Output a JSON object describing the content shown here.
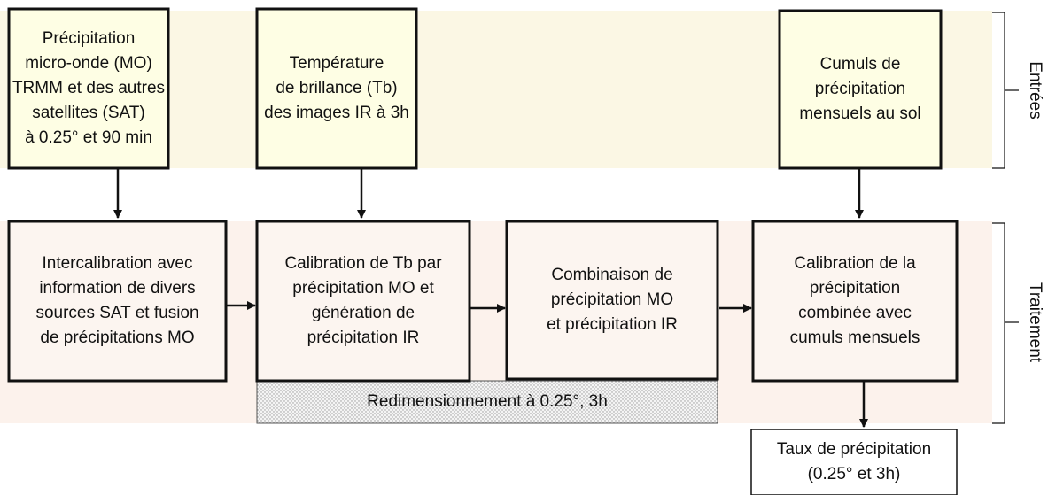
{
  "inputs": [
    {
      "lines": [
        "Précipitation",
        "micro-onde (MO)",
        "TRMM et des autres",
        "satellites (SAT)",
        "à 0.25° et 90 min"
      ]
    },
    {
      "lines": [
        "Température",
        "de brillance  (Tb)",
        "des images IR  à 3h"
      ]
    },
    {
      "lines": [
        "Cumuls de",
        "précipitation",
        "mensuels au sol"
      ]
    }
  ],
  "processes": [
    {
      "lines": [
        "Intercalibration  avec",
        "information de divers",
        "sources SAT et fusion",
        "de précipitations MO"
      ]
    },
    {
      "lines": [
        "Calibration de Tb par",
        "précipitation MO et",
        "génération de",
        "précipitation IR"
      ]
    },
    {
      "lines": [
        "Combinaison de",
        "précipitation MO",
        "et précipitation IR"
      ]
    },
    {
      "lines": [
        "Calibration de la",
        "précipitation",
        "combinée avec",
        "cumuls mensuels"
      ]
    }
  ],
  "resize": {
    "label": "Redimensionnement  à 0.25°, 3h"
  },
  "output": {
    "lines": [
      "Taux de précipitation",
      "(0.25° et 3h)"
    ]
  },
  "side_labels": {
    "inputs": "Entrées",
    "processing": "Traitement"
  }
}
